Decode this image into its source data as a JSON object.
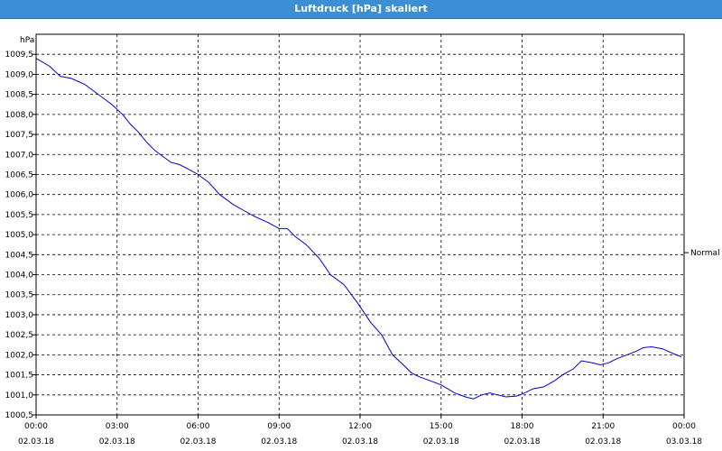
{
  "window": {
    "title": "Luftdruck [hPa] skaliert"
  },
  "chart_data": {
    "type": "line",
    "title": "Luftdruck [hPa] skaliert",
    "ylabel": "hPa",
    "xlabel": "",
    "ylim": [
      1000.5,
      1010.0
    ],
    "yticks": [
      "1009,5",
      "1009,0",
      "1008,5",
      "1008,0",
      "1007,5",
      "1007,0",
      "1006,5",
      "1006,0",
      "1005,5",
      "1005,0",
      "1004,5",
      "1004,0",
      "1003,5",
      "1003,0",
      "1002,5",
      "1002,0",
      "1001,5",
      "1001,0",
      "1000,5"
    ],
    "ytick_values": [
      1009.5,
      1009.0,
      1008.5,
      1008.0,
      1007.5,
      1007.0,
      1006.5,
      1006.0,
      1005.5,
      1005.0,
      1004.5,
      1004.0,
      1003.5,
      1003.0,
      1002.5,
      1002.0,
      1001.5,
      1001.0,
      1000.5
    ],
    "xlim": [
      0,
      24
    ],
    "xticks": [
      {
        "time": "00:00",
        "date": "02.03.18",
        "hour": 0
      },
      {
        "time": "03:00",
        "date": "02.03.18",
        "hour": 3
      },
      {
        "time": "06:00",
        "date": "02.03.18",
        "hour": 6
      },
      {
        "time": "09:00",
        "date": "02.03.18",
        "hour": 9
      },
      {
        "time": "12:00",
        "date": "02.03.18",
        "hour": 12
      },
      {
        "time": "15:00",
        "date": "02.03.18",
        "hour": 15
      },
      {
        "time": "18:00",
        "date": "02.03.18",
        "hour": 18
      },
      {
        "time": "21:00",
        "date": "02.03.18",
        "hour": 21
      },
      {
        "time": "00:00",
        "date": "03.03.18",
        "hour": 24
      }
    ],
    "grid": true,
    "legend_position": "right",
    "series": [
      {
        "name": "Normal",
        "color": "#0000cc",
        "x": [
          0,
          0.5,
          0.9,
          1.3,
          1.8,
          2.3,
          2.8,
          3.2,
          3.5,
          3.8,
          4.1,
          4.4,
          4.7,
          5,
          5.3,
          5.6,
          6,
          6.4,
          6.8,
          7.3,
          7.7,
          8.1,
          8.6,
          9,
          9.3,
          9.6,
          10,
          10.5,
          10.9,
          11.4,
          11.9,
          12.4,
          12.8,
          13.2,
          13.6,
          13.9,
          14.2,
          14.6,
          15,
          15.5,
          15.9,
          16.2,
          16.5,
          16.8,
          17.1,
          17.4,
          17.8,
          18.1,
          18.4,
          18.8,
          19.2,
          19.5,
          19.9,
          20.2,
          20.6,
          20.9,
          21.2,
          21.5,
          21.8,
          22.2,
          22.5,
          22.8,
          23.2,
          23.6,
          23.9
        ],
        "values": [
          1009.4,
          1009.2,
          1008.95,
          1008.9,
          1008.75,
          1008.5,
          1008.25,
          1008.0,
          1007.75,
          1007.55,
          1007.3,
          1007.1,
          1006.95,
          1006.8,
          1006.75,
          1006.65,
          1006.5,
          1006.3,
          1006.0,
          1005.75,
          1005.6,
          1005.45,
          1005.3,
          1005.15,
          1005.15,
          1004.95,
          1004.75,
          1004.4,
          1004.0,
          1003.75,
          1003.3,
          1002.8,
          1002.5,
          1002.0,
          1001.75,
          1001.55,
          1001.45,
          1001.35,
          1001.25,
          1001.05,
          1000.95,
          1000.9,
          1001.0,
          1001.05,
          1001.0,
          1000.95,
          1000.97,
          1001.05,
          1001.15,
          1001.2,
          1001.35,
          1001.5,
          1001.65,
          1001.85,
          1001.8,
          1001.75,
          1001.8,
          1001.9,
          1001.98,
          1002.08,
          1002.18,
          1002.2,
          1002.15,
          1002.03,
          1001.95
        ]
      }
    ]
  }
}
